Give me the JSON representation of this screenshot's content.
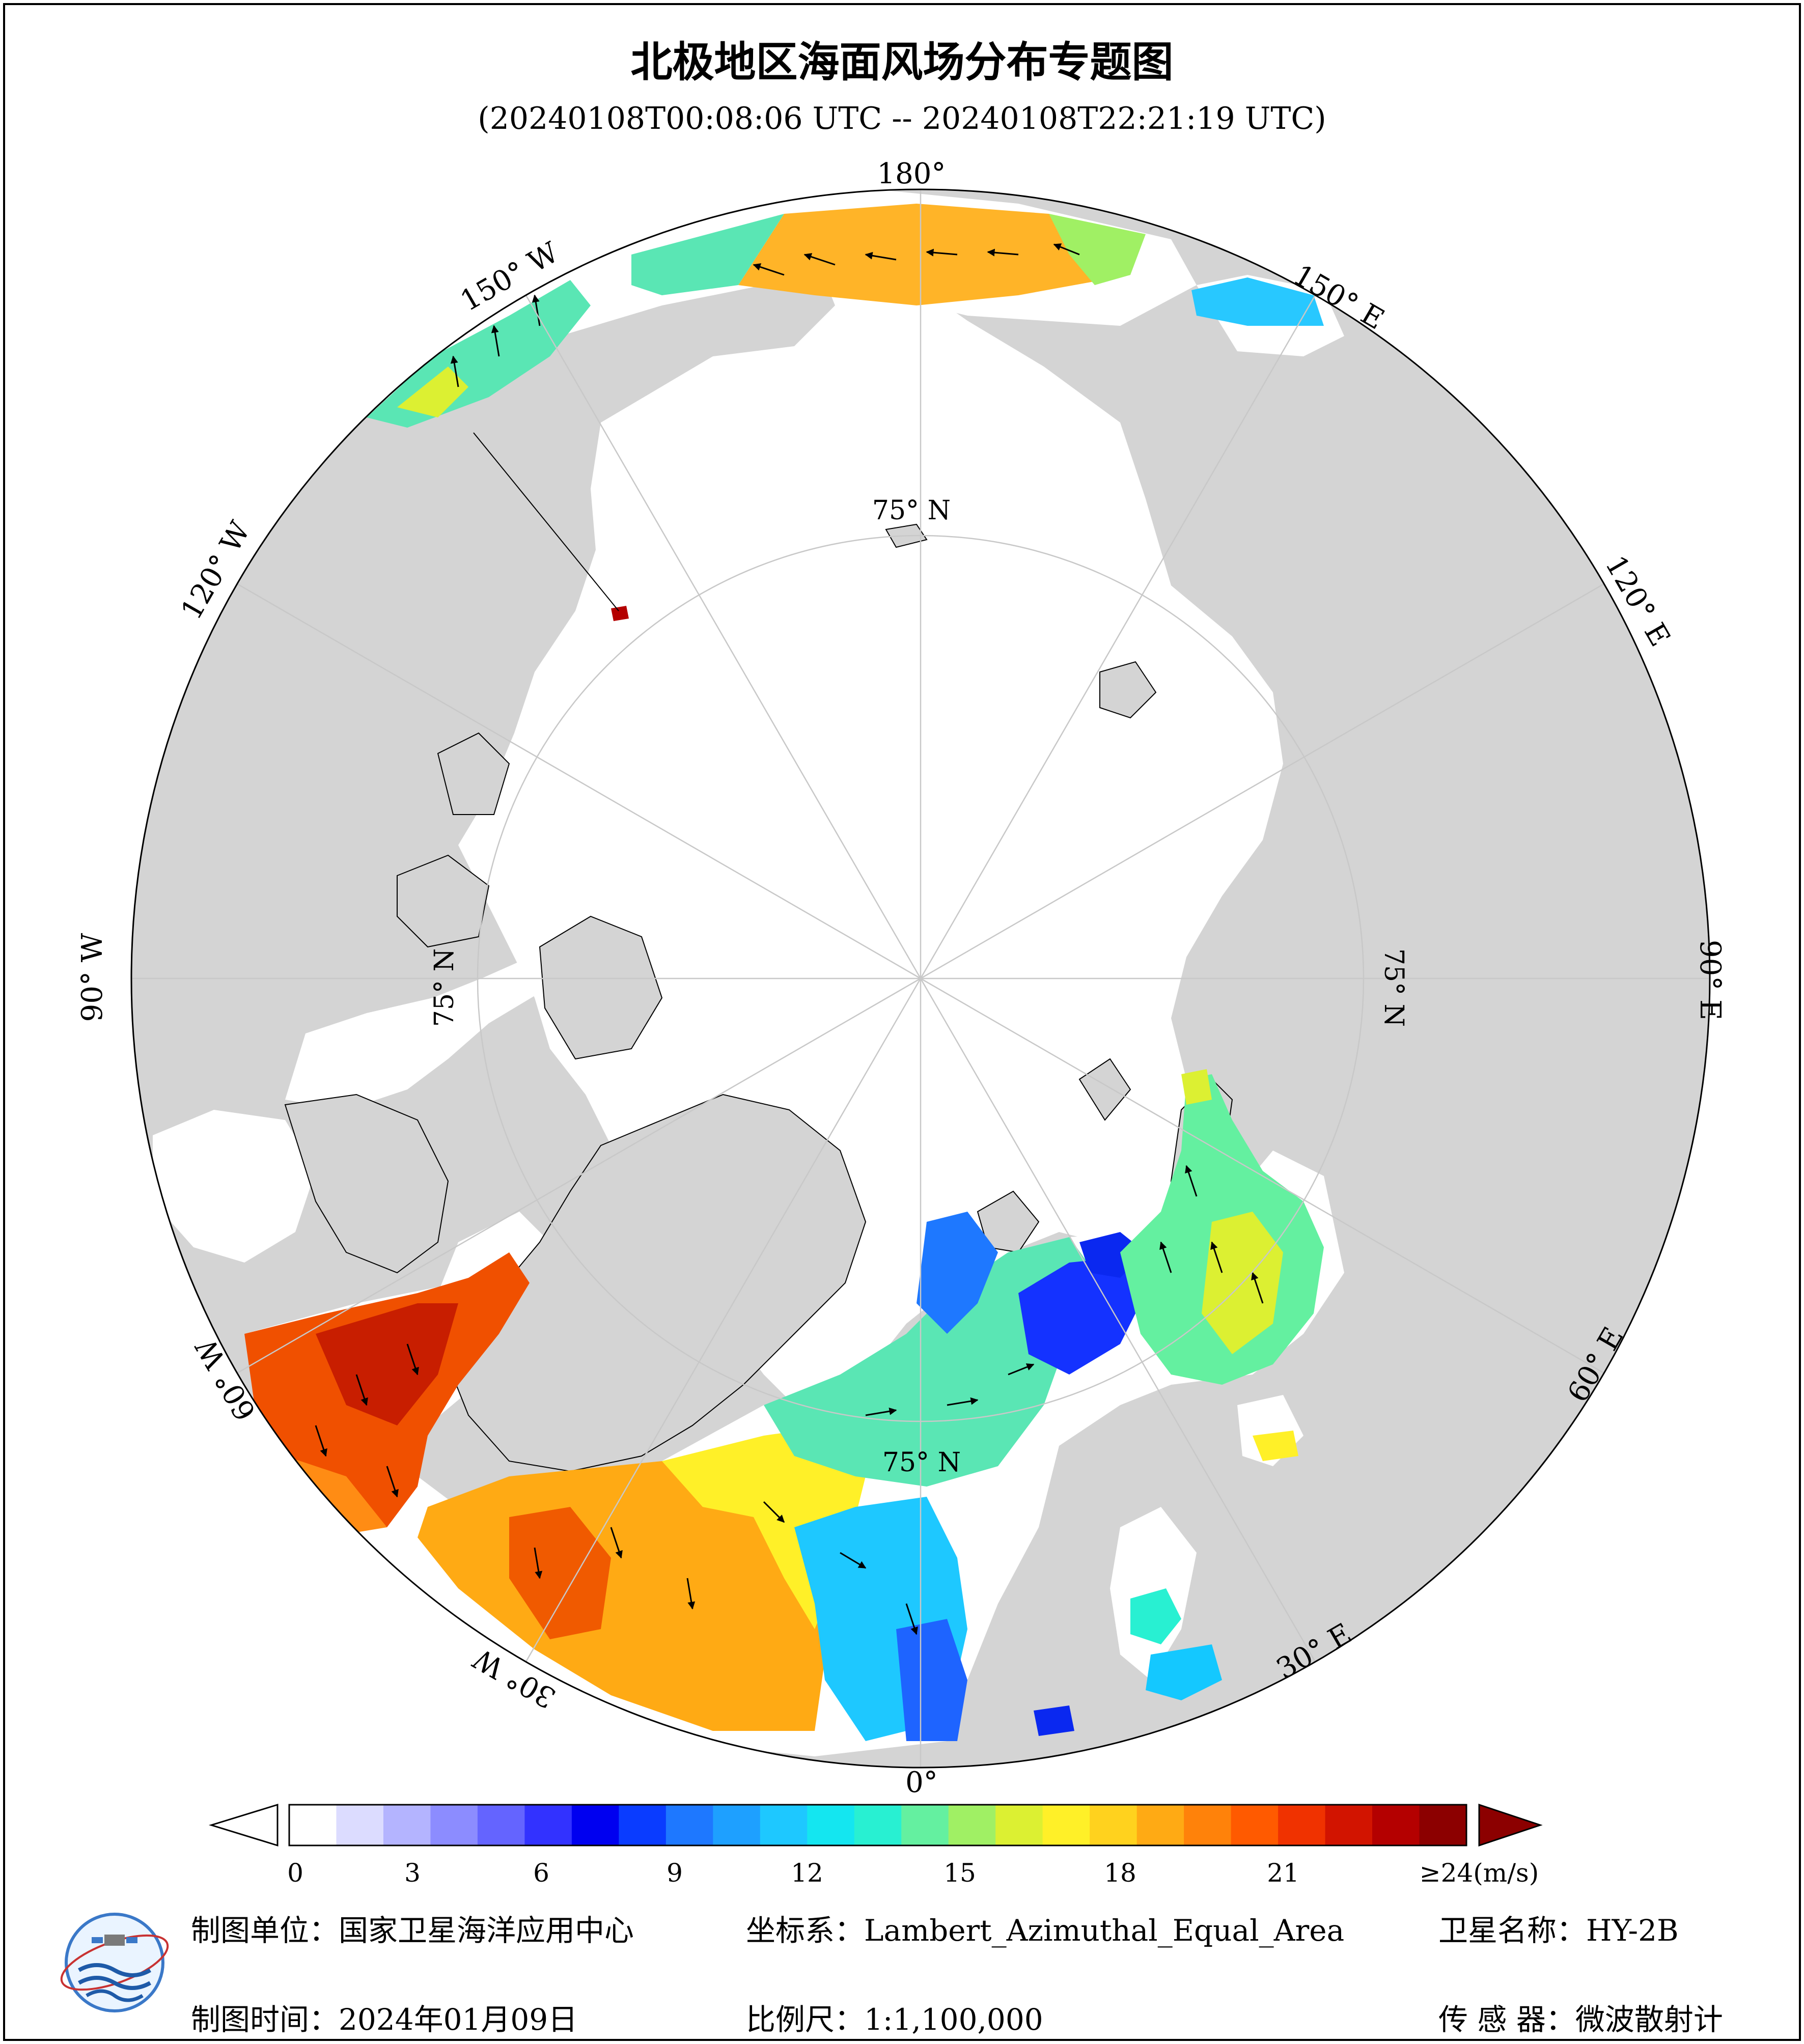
{
  "title": "北极地区海面风场分布专题图",
  "subtitle": "(20240108T00:08:06 UTC -- 20240108T22:21:19 UTC)",
  "map": {
    "projection": "Lambert_Azimuthal_Equal_Area",
    "center": "North Pole",
    "lat_circle_label": "75° N",
    "lon_labels": {
      "lon_180": "180°",
      "lon_150e": "150° E",
      "lon_120e": "120° E",
      "lon_90e": "90° E",
      "lon_60e": "60° E",
      "lon_30e": "30° E",
      "lon_0": "0°",
      "lon_30w": "30° W",
      "lon_60w": "60° W",
      "lon_90w": "90° W",
      "lon_120w": "120° W",
      "lon_150w": "150° W"
    },
    "colors": {
      "land": "#d4d4d4",
      "ocean_no_data": "#ffffff",
      "grid": "#c8c8c8"
    }
  },
  "colorbar": {
    "ticks": [
      "0",
      "3",
      "6",
      "9",
      "12",
      "15",
      "18",
      "21",
      "≥24(m/s)"
    ],
    "colors": [
      "#ffffff",
      "#dcdcff",
      "#b4b4ff",
      "#8c8cff",
      "#6464ff",
      "#3232ff",
      "#0000f0",
      "#0a3cff",
      "#1e78ff",
      "#1ea0ff",
      "#1ec8ff",
      "#14e6f0",
      "#28f0d2",
      "#64f0a0",
      "#a0f064",
      "#dcf032",
      "#fff028",
      "#ffd21e",
      "#ffaa14",
      "#ff820a",
      "#ff5a00",
      "#f03200",
      "#d21400",
      "#b40000",
      "#8c0000"
    ]
  },
  "footer": {
    "producer": "制图单位：国家卫星海洋应用中心",
    "coord_system": "坐标系：Lambert_Azimuthal_Equal_Area",
    "satellite": "卫星名称：HY-2B",
    "date": "制图时间：2024年01月09日",
    "scale": "比例尺：1:1,100,000",
    "sensor": "传 感 器：微波散射计"
  }
}
